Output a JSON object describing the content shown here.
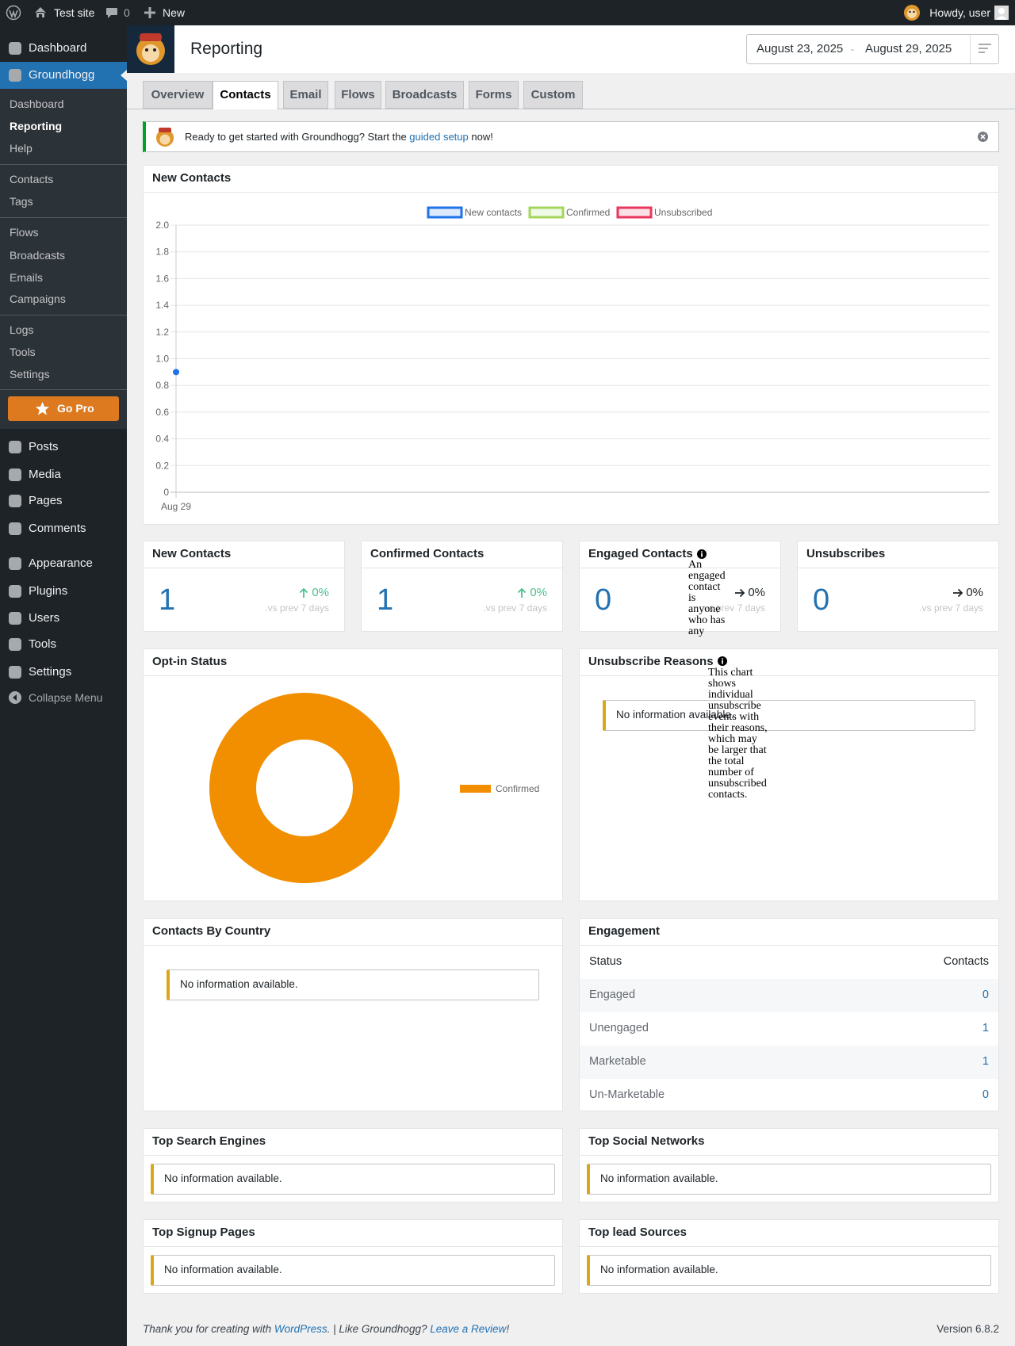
{
  "admin_bar": {
    "site": "Test site",
    "comments": 0,
    "new": "New",
    "howdy": "Howdy, user"
  },
  "menu": {
    "top": [
      "Dashboard",
      "Groundhogg"
    ],
    "submenu": [
      [
        "Dashboard",
        "Reporting",
        "Help"
      ],
      [
        "Contacts",
        "Tags"
      ],
      [
        "Flows",
        "Broadcasts",
        "Emails",
        "Campaigns"
      ],
      [
        "Logs",
        "Tools",
        "Settings"
      ]
    ],
    "go_pro": "Go Pro",
    "items": [
      "Posts",
      "Media",
      "Pages",
      "Comments"
    ],
    "items2": [
      "Appearance",
      "Plugins",
      "Users",
      "Tools",
      "Settings"
    ],
    "collapse": "Collapse Menu"
  },
  "header": {
    "title": "Reporting",
    "date_start": "August 23, 2025",
    "date_separator": "-",
    "date_end": "August 29, 2025"
  },
  "tabs": [
    "Overview",
    "Contacts",
    "Email",
    "Flows",
    "Broadcasts",
    "Forms",
    "Custom"
  ],
  "notice": {
    "text": "Ready to get started with Groundhogg? Start the",
    "link": "guided setup",
    "text_end": "now!"
  },
  "new_contacts": {
    "type": "line",
    "title": "New Contacts",
    "categories": [
      "Aug 29"
    ],
    "series": [
      {
        "name": "New contacts",
        "color": "#1e73e8",
        "values": [
          0.9
        ]
      },
      {
        "name": "Confirmed",
        "color": "#a4d65e",
        "values": [
          null
        ]
      },
      {
        "name": "Unsubscribed",
        "color": "#e8365d",
        "values": [
          null
        ]
      }
    ],
    "ylim": [
      0,
      2
    ],
    "yticks": [
      0,
      0.2,
      0.4,
      0.6,
      0.8,
      {
        "value": 1,
        "label": "1.0"
      },
      1.2,
      1.4,
      1.6,
      1.8,
      {
        "value": 2,
        "label": "2.0"
      }
    ]
  },
  "stats": [
    {
      "title": "New Contacts",
      "value": 1,
      "trend": "up",
      "change": "0%",
      "compare": ".vs prev 7 days"
    },
    {
      "title": "Confirmed Contacts",
      "value": 1,
      "trend": "up",
      "change": "0%",
      "compare": ".vs prev 7 days"
    },
    {
      "title": "Engaged Contacts",
      "info": "An engaged contact is anyone who has any",
      "value": 0,
      "trend": "flat",
      "change": "0%",
      "compare": ".vs prev 7 days"
    },
    {
      "title": "Unsubscribes",
      "value": 0,
      "trend": "flat",
      "change": "0%",
      "compare": ".vs prev 7 days"
    }
  ],
  "opt_in": {
    "type": "pie",
    "title": "Opt-in Status",
    "labels": [
      "Confirmed"
    ],
    "values": [
      1
    ],
    "colors": [
      "#f18f01"
    ]
  },
  "unsubscribe_reasons": {
    "title": "Unsubscribe Reasons",
    "info": "This chart shows individual unsubscribe events with their reasons, which may be larger that the total number of unsubscribed contacts.",
    "empty": "No information available."
  },
  "contacts_by_country": {
    "title": "Contacts By Country",
    "empty": "No information available."
  },
  "engagement": {
    "title": "Engagement",
    "columns": [
      "Status",
      "Contacts"
    ],
    "rows": [
      [
        "Engaged",
        0
      ],
      [
        "Unengaged",
        1
      ],
      [
        "Marketable",
        1
      ],
      [
        "Un-Marketable",
        0
      ]
    ]
  },
  "top_search_engines": {
    "title": "Top Search Engines",
    "empty": "No information available."
  },
  "top_social_networks": {
    "title": "Top Social Networks",
    "empty": "No information available."
  },
  "top_signup_pages": {
    "title": "Top Signup Pages",
    "empty": "No information available."
  },
  "top_lead_sources": {
    "title": "Top lead Sources",
    "empty": "No information available."
  },
  "footer": {
    "text": "Thank you for creating with",
    "link": "WordPress",
    "text_mid": ". | Like Groundhogg?",
    "link2": "Leave a Review",
    "text_end": "!",
    "version": "Version 6.8.2"
  }
}
